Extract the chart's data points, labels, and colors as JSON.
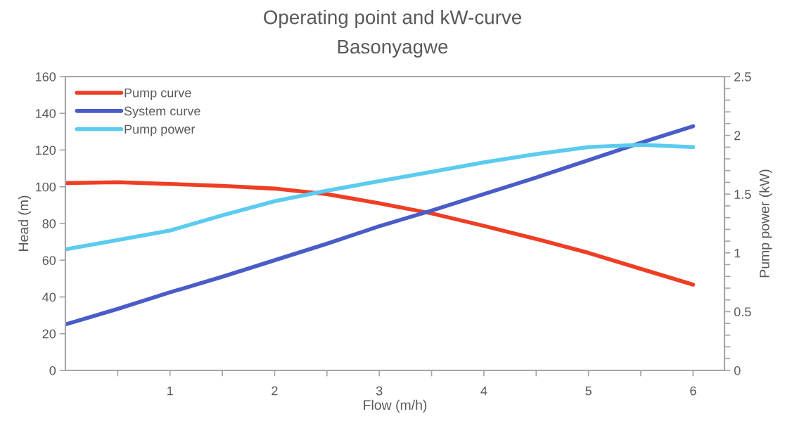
{
  "chart_data": {
    "type": "line",
    "title": "Operating point and kW-curve",
    "subtitle": "Basonyagwe",
    "xlabel": "Flow (m/h)",
    "ylabel": "Head (m)",
    "y2label": "Pump power (kW)",
    "x": [
      0,
      0.5,
      1,
      1.5,
      2,
      2.5,
      3,
      3.5,
      4,
      4.5,
      5,
      5.5,
      6
    ],
    "series": [
      {
        "name": "Pump curve",
        "color": "#ee3e23",
        "values": [
          102,
          102.5,
          101.5,
          100.5,
          99,
          96,
          91,
          85.5,
          78.7,
          71.6,
          64,
          55.3,
          46.7
        ]
      },
      {
        "name": "System curve",
        "color": "#4a5cc8",
        "values": [
          25,
          33.5,
          42.5,
          51,
          60,
          69,
          78.5,
          87,
          96,
          105,
          114.5,
          124,
          133
        ]
      },
      {
        "name": "Pump power",
        "color": "#5bcbf0",
        "axis": "y2",
        "values": [
          1.03,
          1.11,
          1.19,
          1.32,
          1.44,
          1.53,
          1.61,
          1.69,
          1.77,
          1.84,
          1.9,
          1.92,
          1.9
        ]
      }
    ],
    "xlim": [
      0,
      6.3
    ],
    "xticks": [
      {
        "value": 0.5,
        "label": null
      },
      1,
      {
        "value": 1.5,
        "label": null
      },
      2,
      {
        "value": 2.5,
        "label": null
      },
      3,
      {
        "value": 3.5,
        "label": null
      },
      4,
      {
        "value": 4.5,
        "label": null
      },
      5,
      {
        "value": 5.5,
        "label": null
      },
      6
    ],
    "ylim": [
      0,
      160
    ],
    "yticks": [
      0,
      20,
      40,
      60,
      80,
      100,
      120,
      140,
      160
    ],
    "y2lim": [
      0,
      2.5
    ],
    "y2ticks": [
      0,
      {
        "value": 0.1,
        "label": null
      },
      {
        "value": 0.2,
        "label": null
      },
      {
        "value": 0.3,
        "label": null
      },
      {
        "value": 0.4,
        "label": null
      },
      0.5,
      {
        "value": 0.6,
        "label": null
      },
      {
        "value": 0.7,
        "label": null
      },
      {
        "value": 0.8,
        "label": null
      },
      {
        "value": 0.9,
        "label": null
      },
      1,
      {
        "value": 1.1,
        "label": null
      },
      {
        "value": 1.2,
        "label": null
      },
      {
        "value": 1.3,
        "label": null
      },
      {
        "value": 1.4,
        "label": null
      },
      1.5,
      {
        "value": 1.6,
        "label": null
      },
      {
        "value": 1.7,
        "label": null
      },
      {
        "value": 1.8,
        "label": null
      },
      {
        "value": 1.9,
        "label": null
      },
      2,
      {
        "value": 2.1,
        "label": null
      },
      {
        "value": 2.2,
        "label": null
      },
      {
        "value": 2.3,
        "label": null
      },
      {
        "value": 2.4,
        "label": null
      },
      2.5
    ],
    "grid": false,
    "legend": "top left",
    "marker": "none",
    "line_style": "solid"
  }
}
